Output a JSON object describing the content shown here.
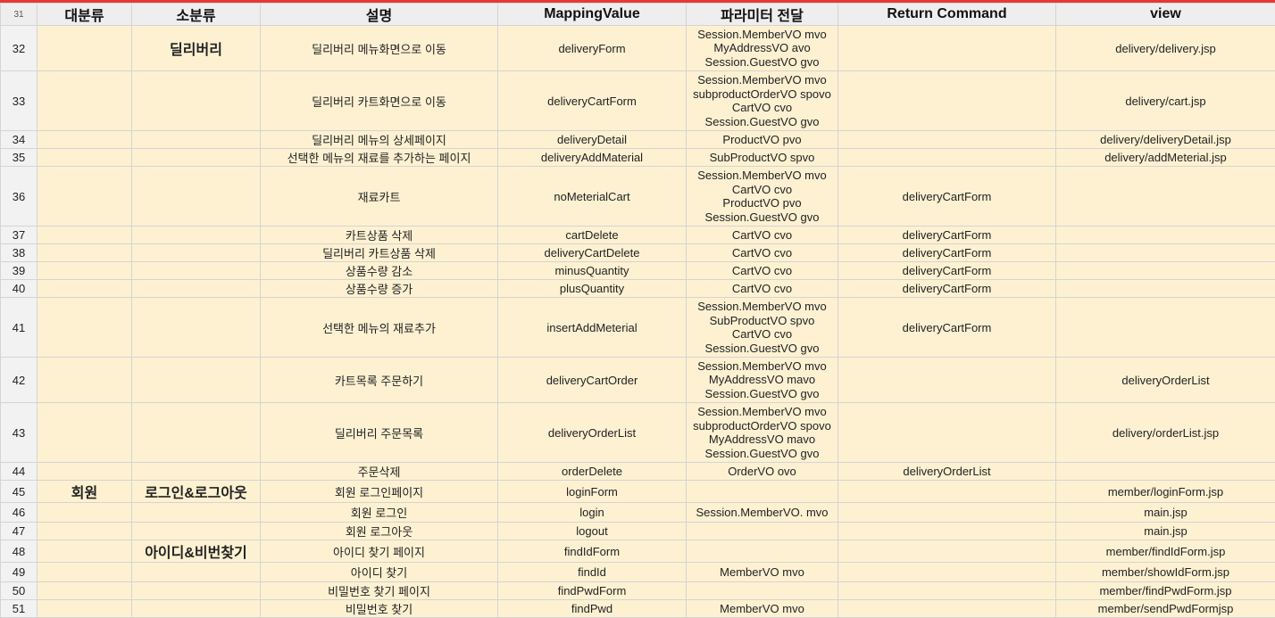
{
  "header": {
    "row_number": "31",
    "columns": [
      "대분류",
      "소분류",
      "설명",
      "MappingValue",
      "파라미터 전달",
      "Return Command",
      "view"
    ]
  },
  "rows": [
    {
      "num": "32",
      "major": "",
      "minor": "딜리버리",
      "desc": "딜리버리 메뉴화면으로 이동",
      "mapping": "deliveryForm",
      "params": [
        "Session.MemberVO mvo",
        "MyAddressVO avo",
        "Session.GuestVO gvo"
      ],
      "ret": "",
      "view": "delivery/delivery.jsp"
    },
    {
      "num": "33",
      "major": "",
      "minor": "",
      "desc": "딜리버리 카트화면으로 이동",
      "mapping": "deliveryCartForm",
      "params": [
        "Session.MemberVO mvo",
        "subproductOrderVO spovo",
        "CartVO cvo",
        "Session.GuestVO gvo"
      ],
      "ret": "",
      "view": "delivery/cart.jsp"
    },
    {
      "num": "34",
      "major": "",
      "minor": "",
      "desc": "딜리버리 메뉴의 상세페이지",
      "mapping": "deliveryDetail",
      "params": [
        "ProductVO pvo"
      ],
      "ret": "",
      "view": "delivery/deliveryDetail.jsp"
    },
    {
      "num": "35",
      "major": "",
      "minor": "",
      "desc": "선택한 메뉴의 재료를 추가하는 페이지",
      "mapping": "deliveryAddMaterial",
      "params": [
        "SubProductVO spvo"
      ],
      "ret": "",
      "view": "delivery/addMeterial.jsp"
    },
    {
      "num": "36",
      "major": "",
      "minor": "",
      "desc": "재료카트",
      "mapping": "noMeterialCart",
      "params": [
        "Session.MemberVO mvo",
        "CartVO cvo",
        "ProductVO pvo",
        "Session.GuestVO gvo"
      ],
      "ret": "deliveryCartForm",
      "view": ""
    },
    {
      "num": "37",
      "major": "",
      "minor": "",
      "desc": "카트상품 삭제",
      "mapping": "cartDelete",
      "params": [
        "CartVO cvo"
      ],
      "ret": "deliveryCartForm",
      "view": ""
    },
    {
      "num": "38",
      "major": "",
      "minor": "",
      "desc": "딜리버리 카트상품 삭제",
      "mapping": "deliveryCartDelete",
      "params": [
        "CartVO cvo"
      ],
      "ret": "deliveryCartForm",
      "view": ""
    },
    {
      "num": "39",
      "major": "",
      "minor": "",
      "desc": "상품수량 감소",
      "mapping": "minusQuantity",
      "params": [
        "CartVO cvo"
      ],
      "ret": "deliveryCartForm",
      "view": ""
    },
    {
      "num": "40",
      "major": "",
      "minor": "",
      "desc": "상품수량 증가",
      "mapping": "plusQuantity",
      "params": [
        "CartVO cvo"
      ],
      "ret": "deliveryCartForm",
      "view": ""
    },
    {
      "num": "41",
      "major": "",
      "minor": "",
      "desc": "선택한 메뉴의 재료추가",
      "mapping": "insertAddMeterial",
      "params": [
        "Session.MemberVO mvo",
        "SubProductVO spvo",
        "CartVO cvo",
        "Session.GuestVO gvo"
      ],
      "ret": "deliveryCartForm",
      "view": ""
    },
    {
      "num": "42",
      "major": "",
      "minor": "",
      "desc": "카트목록 주문하기",
      "mapping": "deliveryCartOrder",
      "params": [
        "Session.MemberVO mvo",
        "MyAddressVO mavo",
        "Session.GuestVO gvo"
      ],
      "ret": "",
      "view": "deliveryOrderList"
    },
    {
      "num": "43",
      "major": "",
      "minor": "",
      "desc": "딜리버리 주문목록",
      "mapping": "deliveryOrderList",
      "params": [
        "Session.MemberVO mvo",
        "subproductOrderVO spovo",
        "MyAddressVO mavo",
        "Session.GuestVO gvo"
      ],
      "ret": "",
      "view": "delivery/orderList.jsp"
    },
    {
      "num": "44",
      "major": "",
      "minor": "",
      "desc": "주문삭제",
      "mapping": "orderDelete",
      "params": [
        "OrderVO ovo"
      ],
      "ret": "deliveryOrderList",
      "view": ""
    },
    {
      "num": "45",
      "major": "회원",
      "minor": "로그인&로그아웃",
      "desc": "회원 로그인페이지",
      "mapping": "loginForm",
      "params": [],
      "ret": "",
      "view": "member/loginForm.jsp"
    },
    {
      "num": "46",
      "major": "",
      "minor": "",
      "desc": "회원 로그인",
      "mapping": "login",
      "params": [
        "Session.MemberVO. mvo"
      ],
      "ret": "",
      "view": "main.jsp"
    },
    {
      "num": "47",
      "major": "",
      "minor": "",
      "desc": "회원 로그아웃",
      "mapping": "logout",
      "params": [],
      "ret": "",
      "view": "main.jsp"
    },
    {
      "num": "48",
      "major": "",
      "minor": "아이디&비번찾기",
      "desc": "아이디 찾기 페이지",
      "mapping": "findIdForm",
      "params": [],
      "ret": "",
      "view": "member/findIdForm.jsp"
    },
    {
      "num": "49",
      "major": "",
      "minor": "",
      "desc": "아이디 찾기",
      "mapping": "findId",
      "params": [
        "MemberVO mvo"
      ],
      "ret": "",
      "view": "member/showIdForm.jsp"
    },
    {
      "num": "50",
      "major": "",
      "minor": "",
      "desc": "비밀번호 찾기 페이지",
      "mapping": "findPwdForm",
      "params": [],
      "ret": "",
      "view": "member/findPwdForm.jsp"
    },
    {
      "num": "51",
      "major": "",
      "minor": "",
      "desc": "비밀번호 찾기",
      "mapping": "findPwd",
      "params": [
        "MemberVO mvo"
      ],
      "ret": "",
      "view": "member/sendPwdFormjsp"
    }
  ]
}
